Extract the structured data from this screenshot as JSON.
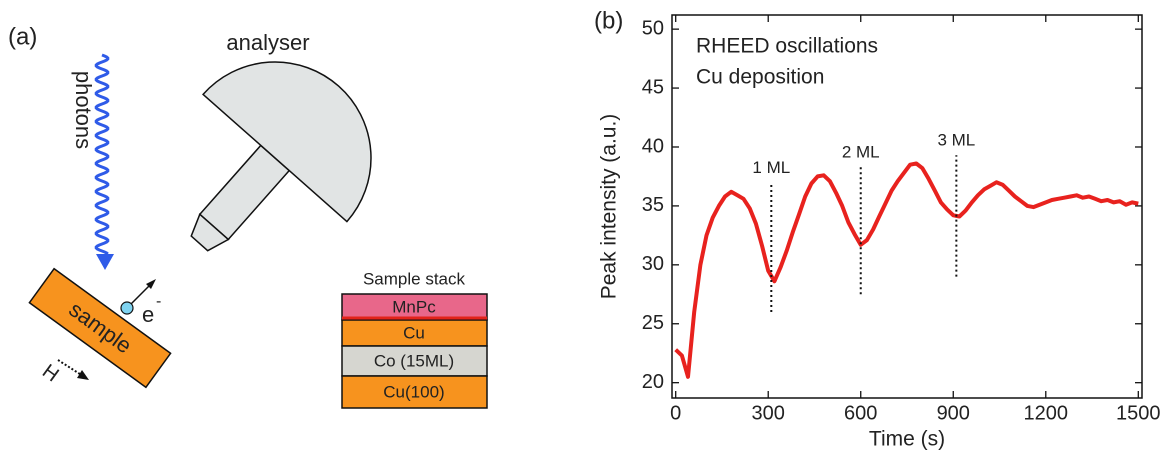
{
  "panel_a": {
    "label": "(a)",
    "photons": "photons",
    "analyser": "analyser",
    "sample": "sample",
    "electron": "e",
    "electron_sup": "-",
    "field": "H",
    "stack": {
      "title": "Sample stack",
      "layers": [
        "MnPc",
        "Cu",
        "Co (15ML)",
        "Cu(100)"
      ]
    }
  },
  "chart_data": {
    "type": "line",
    "panel_label": "(b)",
    "notes": [
      "RHEED oscillations",
      "Cu deposition"
    ],
    "xlabel": "Time (s)",
    "ylabel": "Peak intensity (a.u.)",
    "x": [
      0,
      20,
      40,
      60,
      80,
      100,
      120,
      140,
      160,
      180,
      200,
      220,
      240,
      260,
      280,
      300,
      320,
      340,
      360,
      380,
      400,
      420,
      440,
      460,
      480,
      500,
      520,
      540,
      560,
      580,
      600,
      620,
      640,
      660,
      680,
      700,
      720,
      740,
      760,
      780,
      800,
      820,
      840,
      860,
      880,
      900,
      920,
      940,
      960,
      980,
      1000,
      1020,
      1040,
      1060,
      1080,
      1100,
      1120,
      1140,
      1160,
      1180,
      1200,
      1220,
      1240,
      1260,
      1280,
      1300,
      1320,
      1340,
      1360,
      1380,
      1400,
      1420,
      1440,
      1460,
      1480,
      1500
    ],
    "values": [
      22.8,
      22.3,
      20.5,
      26,
      30,
      32.5,
      34,
      35,
      35.8,
      36.2,
      35.9,
      35.6,
      34.8,
      33.5,
      31.6,
      29.5,
      28.6,
      29.8,
      31.2,
      32.8,
      34.3,
      35.8,
      36.9,
      37.5,
      37.6,
      37.1,
      36.1,
      35,
      33.6,
      32.6,
      31.7,
      32.1,
      33,
      34.1,
      35.2,
      36.3,
      37.1,
      37.8,
      38.5,
      38.6,
      38.2,
      37.3,
      36.3,
      35.3,
      34.7,
      34.2,
      34.1,
      34.6,
      35.3,
      35.9,
      36.4,
      36.7,
      37,
      36.8,
      36.3,
      35.8,
      35.4,
      35,
      34.9,
      35.1,
      35.3,
      35.5,
      35.6,
      35.7,
      35.8,
      35.9,
      35.7,
      35.8,
      35.6,
      35.4,
      35.5,
      35.3,
      35.4,
      35.1,
      35.3,
      35.2
    ],
    "color": "#e8221e",
    "markers": [
      {
        "label": "1 ML",
        "x": 310,
        "y": [
          26,
          37
        ]
      },
      {
        "label": "2 ML",
        "x": 600,
        "y": [
          27.5,
          38.3
        ]
      },
      {
        "label": "3 ML",
        "x": 910,
        "y": [
          29,
          39.3
        ]
      }
    ],
    "xlim": [
      -12,
      1512
    ],
    "ylim": [
      18.7,
      51.2
    ],
    "xticks": [
      0,
      300,
      600,
      900,
      1200,
      1500
    ],
    "yticks": [
      20,
      25,
      30,
      35,
      40,
      45,
      50
    ]
  }
}
